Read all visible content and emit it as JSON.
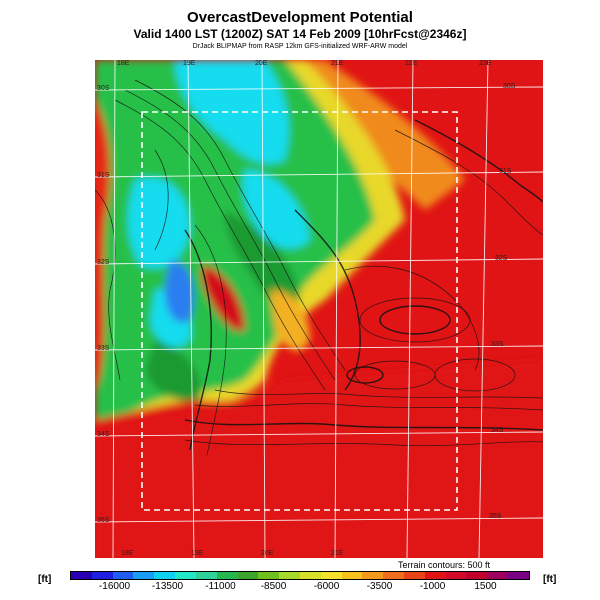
{
  "title": "OvercastDevelopment Potential",
  "subtitle": "Valid 1400 LST (1200Z) SAT 14 Feb 2009 [10hrFcst@2346z]",
  "credit": "DrJack BLIPMAP from RASP 12km GFS-initialized WRF-ARW model",
  "terrain_note": "Terrain contours: 500 ft",
  "units_label": "[ft]",
  "longitude_labels": [
    "18E",
    "19E",
    "20E",
    "21E",
    "22E",
    "23E"
  ],
  "latitude_labels": [
    "30S",
    "31S",
    "32S",
    "33S",
    "34S",
    "35S"
  ],
  "colorbar_ticks": [
    "-16000",
    "-13500",
    "-11000",
    "-8500",
    "-6000",
    "-3500",
    "-1000",
    "1500"
  ],
  "colorbar_colors": [
    "#2a00b5",
    "#2020e0",
    "#1f5ff0",
    "#1a9ef5",
    "#0fd2f2",
    "#22e8c8",
    "#2ed39a",
    "#26b84f",
    "#3ca52d",
    "#6fc21e",
    "#a6d92a",
    "#d6e02a",
    "#f5e22a",
    "#f5c21e",
    "#f39a1e",
    "#ef6f1e",
    "#e84418",
    "#e01414",
    "#d40a2a",
    "#c2002e",
    "#9e0060",
    "#7a0084"
  ],
  "map_colors": {
    "cyan": "#14e1f0",
    "green": "#22c84a",
    "darkgreen": "#1f9a32",
    "yellow": "#e8e02a",
    "orange": "#f5a020",
    "red": "#e01414",
    "blue": "#2a8cf0"
  }
}
